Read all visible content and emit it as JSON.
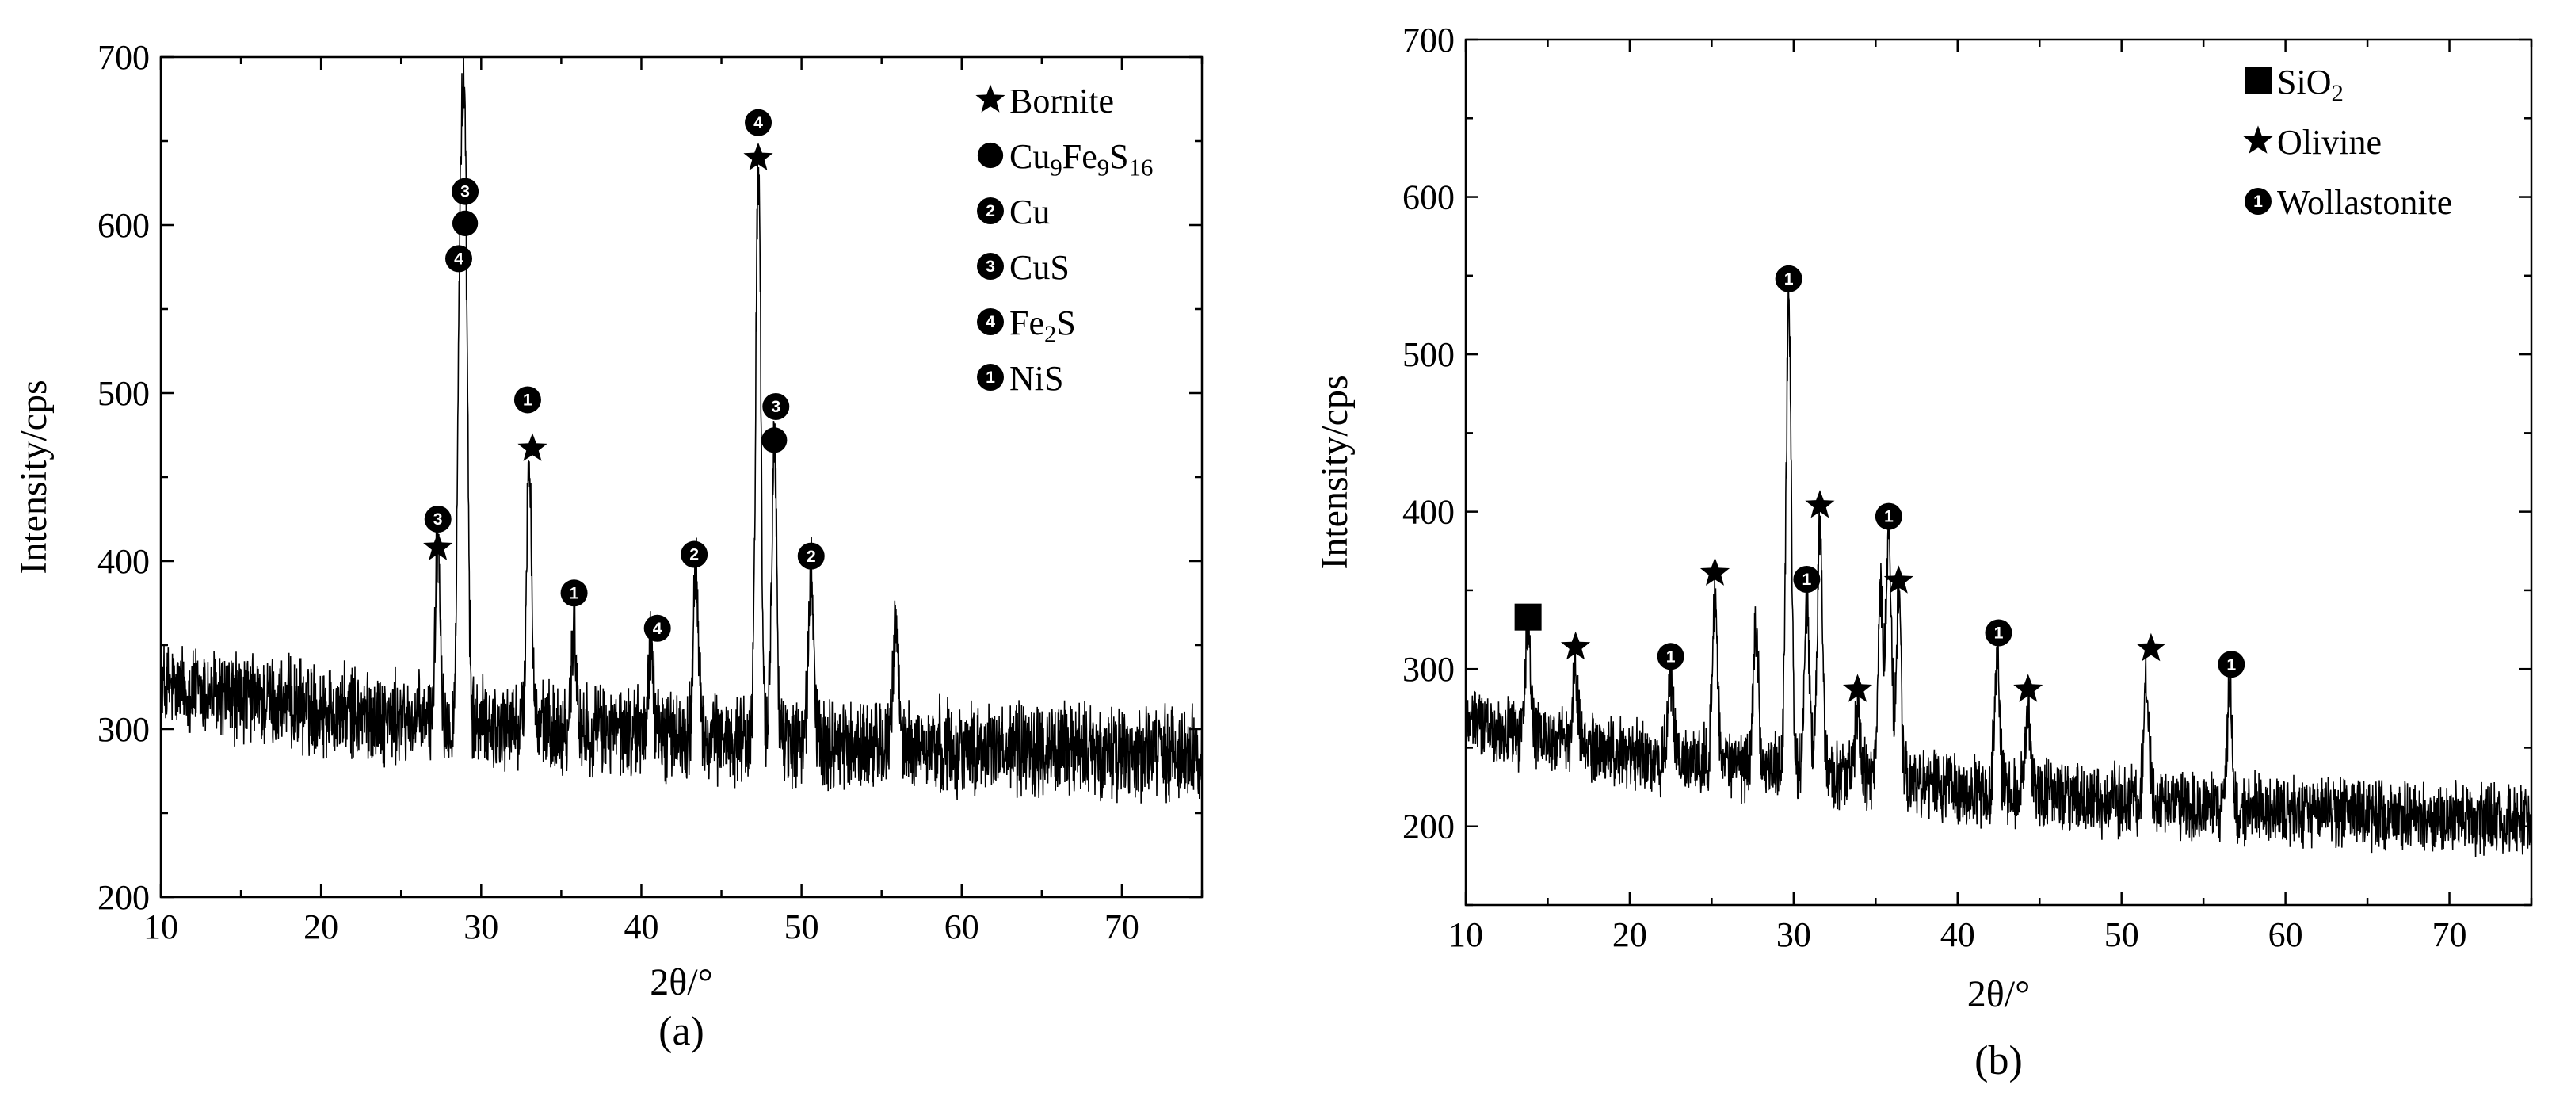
{
  "figure": {
    "panels": [
      {
        "id": "a",
        "caption": "(a)",
        "xlabel": "2θ/°",
        "ylabel": "Intensity/cps",
        "xlim": [
          10,
          75
        ],
        "ylim": [
          200,
          700
        ],
        "xticks": [
          10,
          20,
          30,
          40,
          50,
          60,
          70
        ],
        "yticks": [
          200,
          300,
          400,
          500,
          600,
          700
        ],
        "legend": [
          {
            "symbol": "star",
            "digit": "",
            "label": "Bornite"
          },
          {
            "symbol": "circle",
            "digit": "",
            "label": "Cu",
            "parts": [
              [
                "Cu",
                ""
              ],
              [
                "9",
                "sub"
              ],
              [
                "Fe",
                ""
              ],
              [
                "9",
                "sub"
              ],
              [
                "S",
                ""
              ],
              [
                "16",
                "sub"
              ]
            ]
          },
          {
            "symbol": "num",
            "digit": "2",
            "label": "Cu"
          },
          {
            "symbol": "num",
            "digit": "3",
            "label": "CuS"
          },
          {
            "symbol": "num",
            "digit": "4",
            "label": "Fe2S",
            "parts": [
              [
                "Fe",
                ""
              ],
              [
                "2",
                "sub"
              ],
              [
                "S",
                ""
              ]
            ]
          },
          {
            "symbol": "num",
            "digit": "1",
            "label": "NiS"
          }
        ],
        "markers": [
          {
            "symbol": "num",
            "digit": "3",
            "x": 27.3,
            "y": 425
          },
          {
            "symbol": "star",
            "x": 27.3,
            "y": 408
          },
          {
            "symbol": "num",
            "digit": "4",
            "x": 28.6,
            "y": 580
          },
          {
            "symbol": "num",
            "digit": "3",
            "x": 29.0,
            "y": 620
          },
          {
            "symbol": "circle",
            "x": 29.0,
            "y": 601
          },
          {
            "symbol": "num",
            "digit": "1",
            "x": 32.9,
            "y": 496
          },
          {
            "symbol": "star",
            "x": 33.2,
            "y": 467
          },
          {
            "symbol": "num",
            "digit": "1",
            "x": 35.8,
            "y": 381
          },
          {
            "symbol": "num",
            "digit": "4",
            "x": 41.0,
            "y": 360
          },
          {
            "symbol": "num",
            "digit": "2",
            "x": 43.3,
            "y": 404
          },
          {
            "symbol": "num",
            "digit": "4",
            "x": 47.3,
            "y": 661
          },
          {
            "symbol": "star",
            "x": 47.3,
            "y": 640
          },
          {
            "symbol": "num",
            "digit": "3",
            "x": 48.4,
            "y": 492
          },
          {
            "symbol": "circle",
            "x": 48.3,
            "y": 472
          },
          {
            "symbol": "num",
            "digit": "2",
            "x": 50.6,
            "y": 403
          }
        ]
      },
      {
        "id": "b",
        "caption": "(b)",
        "xlabel": "2θ/°",
        "ylabel": "Intensity/cps",
        "xlim": [
          10,
          75
        ],
        "ylim": [
          150,
          700
        ],
        "xticks": [
          10,
          20,
          30,
          40,
          50,
          60,
          70
        ],
        "yticks": [
          200,
          300,
          400,
          500,
          600,
          700
        ],
        "legend": [
          {
            "symbol": "square",
            "digit": "",
            "label": "SiO2",
            "parts": [
              [
                "SiO",
                ""
              ],
              [
                "2",
                "sub"
              ]
            ]
          },
          {
            "symbol": "star",
            "digit": "",
            "label": "Olivine"
          },
          {
            "symbol": "num",
            "digit": "1",
            "label": "Wollastonite"
          }
        ],
        "markers": [
          {
            "symbol": "square",
            "x": 13.8,
            "y": 333
          },
          {
            "symbol": "star",
            "x": 16.7,
            "y": 314
          },
          {
            "symbol": "num",
            "digit": "1",
            "x": 22.5,
            "y": 308
          },
          {
            "symbol": "star",
            "x": 25.2,
            "y": 361
          },
          {
            "symbol": "num",
            "digit": "1",
            "x": 29.7,
            "y": 548
          },
          {
            "symbol": "num",
            "digit": "1",
            "x": 30.8,
            "y": 357
          },
          {
            "symbol": "star",
            "x": 31.6,
            "y": 404
          },
          {
            "symbol": "star",
            "x": 33.9,
            "y": 287
          },
          {
            "symbol": "num",
            "digit": "1",
            "x": 35.8,
            "y": 397
          },
          {
            "symbol": "star",
            "x": 36.4,
            "y": 356
          },
          {
            "symbol": "num",
            "digit": "1",
            "x": 42.5,
            "y": 323
          },
          {
            "symbol": "star",
            "x": 44.3,
            "y": 287
          },
          {
            "symbol": "num",
            "digit": "1",
            "x": 56.7,
            "y": 303
          },
          {
            "symbol": "star",
            "x": 51.8,
            "y": 313
          }
        ]
      }
    ]
  },
  "chart_data": [
    {
      "type": "line",
      "panel": "(a)",
      "xlabel": "2θ/°",
      "ylabel": "Intensity/cps",
      "xlim": [
        10,
        75
      ],
      "ylim": [
        200,
        700
      ],
      "grid": false,
      "legend_position": "top-right",
      "baseline": [
        [
          10,
          325
        ],
        [
          15,
          318
        ],
        [
          20,
          312
        ],
        [
          25,
          305
        ],
        [
          30,
          303
        ],
        [
          35,
          300
        ],
        [
          40,
          298
        ],
        [
          45,
          294
        ],
        [
          50,
          292
        ],
        [
          55,
          290
        ],
        [
          60,
          289
        ],
        [
          65,
          288
        ],
        [
          70,
          286
        ],
        [
          75,
          285
        ]
      ],
      "peaks": [
        {
          "x": 27.3,
          "y": 410
        },
        {
          "x": 28.7,
          "y": 580
        },
        {
          "x": 29.0,
          "y": 600
        },
        {
          "x": 33.0,
          "y": 460
        },
        {
          "x": 35.8,
          "y": 360
        },
        {
          "x": 40.6,
          "y": 350
        },
        {
          "x": 43.4,
          "y": 395
        },
        {
          "x": 47.3,
          "y": 640
        },
        {
          "x": 48.3,
          "y": 470
        },
        {
          "x": 50.6,
          "y": 395
        },
        {
          "x": 55.9,
          "y": 365
        }
      ],
      "noise": 22
    },
    {
      "type": "line",
      "panel": "(b)",
      "xlabel": "2θ/°",
      "ylabel": "Intensity/cps",
      "xlim": [
        10,
        75
      ],
      "ylim": [
        150,
        700
      ],
      "grid": false,
      "legend_position": "top-right",
      "baseline": [
        [
          10,
          268
        ],
        [
          15,
          255
        ],
        [
          20,
          245
        ],
        [
          25,
          240
        ],
        [
          30,
          236
        ],
        [
          35,
          230
        ],
        [
          40,
          224
        ],
        [
          45,
          220
        ],
        [
          50,
          216
        ],
        [
          55,
          212
        ],
        [
          60,
          210
        ],
        [
          65,
          208
        ],
        [
          70,
          205
        ],
        [
          75,
          204
        ]
      ],
      "peaks": [
        {
          "x": 13.8,
          "y": 325
        },
        {
          "x": 16.7,
          "y": 300
        },
        {
          "x": 22.5,
          "y": 292
        },
        {
          "x": 25.2,
          "y": 345
        },
        {
          "x": 27.7,
          "y": 330
        },
        {
          "x": 29.7,
          "y": 535
        },
        {
          "x": 30.8,
          "y": 340
        },
        {
          "x": 31.6,
          "y": 390
        },
        {
          "x": 33.9,
          "y": 272
        },
        {
          "x": 35.3,
          "y": 350
        },
        {
          "x": 35.8,
          "y": 385
        },
        {
          "x": 36.4,
          "y": 340
        },
        {
          "x": 42.4,
          "y": 310
        },
        {
          "x": 44.3,
          "y": 275
        },
        {
          "x": 51.5,
          "y": 295
        },
        {
          "x": 56.6,
          "y": 290
        }
      ],
      "noise": 18
    }
  ]
}
